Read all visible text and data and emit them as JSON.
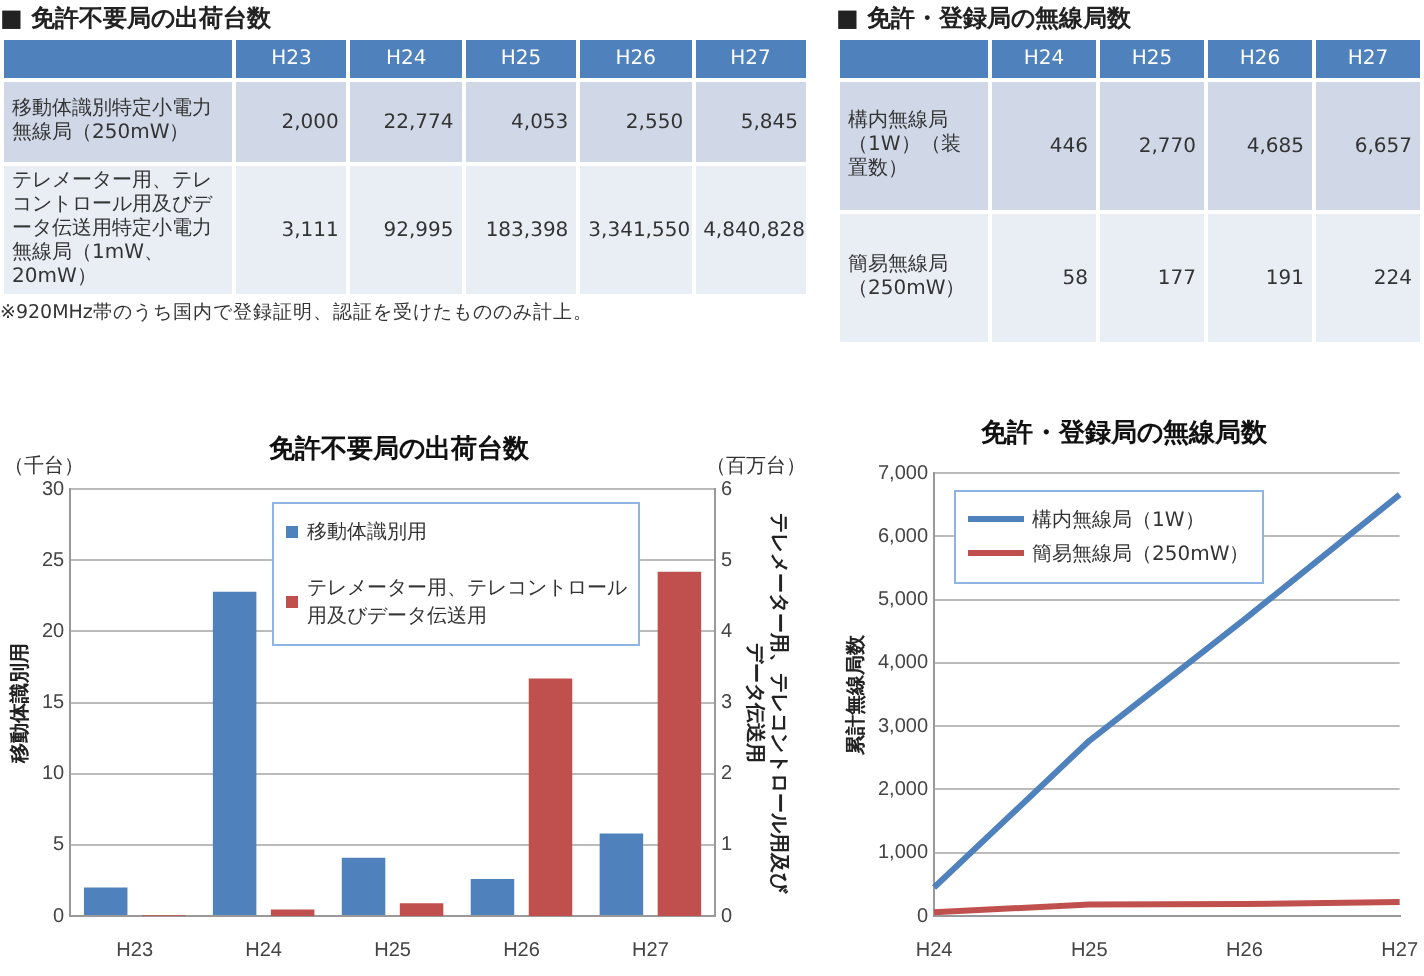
{
  "chart_data": [
    {
      "type": "other",
      "title": "■ 免許不要局の出荷台数",
      "categories": [
        "H23",
        "H24",
        "H25",
        "H26",
        "H27"
      ],
      "series": [
        {
          "name": "移動体識別特定小電力無線局（250mW）",
          "values": [
            2000,
            22774,
            4053,
            2550,
            5845
          ],
          "value_labels": [
            "2,000",
            "22,774",
            "4,053",
            "2,550",
            "5,845"
          ]
        },
        {
          "name": "テレメーター用、テレコントロール用及びデータ伝送用特定小電力無線局（1mW、20mW）",
          "values": [
            3111,
            92995,
            183398,
            3341550,
            4840828
          ],
          "value_labels": [
            "3,111",
            "92,995",
            "183,398",
            "3,341,550",
            "4,840,828"
          ]
        }
      ],
      "annotations": [
        "※920MHz帯のうち国内で登録証明、認証を受けたもののみ計上。"
      ]
    },
    {
      "type": "other",
      "title": "■ 免許・登録局の無線局数",
      "categories": [
        "H24",
        "H25",
        "H26",
        "H27"
      ],
      "series": [
        {
          "name": "構内無線局（1W）（装置数）",
          "values": [
            446,
            2770,
            4685,
            6657
          ],
          "value_labels": [
            "446",
            "2,770",
            "4,685",
            "6,657"
          ]
        },
        {
          "name": "簡易無線局（250mW）",
          "values": [
            58,
            177,
            191,
            224
          ],
          "value_labels": [
            "58",
            "177",
            "191",
            "224"
          ]
        }
      ]
    },
    {
      "type": "bar",
      "title": "免許不要局の出荷台数",
      "categories": [
        "H23",
        "H24",
        "H25",
        "H26",
        "H27"
      ],
      "series": [
        {
          "name": "移動体識別用",
          "color": "#4f81bd",
          "values": [
            2.0,
            22.8,
            4.1,
            2.6,
            5.8
          ]
        },
        {
          "name": "テレメーター用、テレコントロール用及びデータ伝送用",
          "color": "#c0504d",
          "axis": "y2",
          "values": [
            0.01,
            0.09,
            0.18,
            3.34,
            4.84
          ]
        }
      ],
      "ylabel": "移動体識別用",
      "y2label": "テレメーター用、テレコントロール用及びデータ伝送用",
      "ylim": [
        0,
        30
      ],
      "yticks": [
        0,
        5,
        10,
        15,
        20,
        25,
        30
      ],
      "y2lim": [
        0,
        6
      ],
      "y2ticks": [
        0,
        1,
        2,
        3,
        4,
        5,
        6
      ],
      "grid": "y",
      "legend": "top",
      "annotations": [
        "（千台）",
        "（百万台）"
      ]
    },
    {
      "type": "line",
      "title": "免許・登録局の無線局数",
      "categories": [
        "H24",
        "H25",
        "H26",
        "H27"
      ],
      "series": [
        {
          "name": "構内無線局（1W）",
          "color": "#4f81bd",
          "values": [
            450,
            2770,
            4690,
            6660
          ]
        },
        {
          "name": "簡易無線局（250mW）",
          "color": "#c0504d",
          "values": [
            60,
            180,
            190,
            220
          ]
        }
      ],
      "ylabel": "累計無線局数",
      "ylim": [
        0,
        7000
      ],
      "yticks": [
        0,
        {
          "value": 1000,
          "label": "1,000"
        },
        {
          "value": 2000,
          "label": "2,000"
        },
        {
          "value": 3000,
          "label": "3,000"
        },
        {
          "value": 4000,
          "label": "4,000"
        },
        {
          "value": 5000,
          "label": "5,000"
        },
        {
          "value": 6000,
          "label": "6,000"
        },
        {
          "value": 7000,
          "label": "7,000"
        }
      ],
      "grid": "y",
      "legend": "top left",
      "marker": "none",
      "line_style": "solid"
    }
  ]
}
